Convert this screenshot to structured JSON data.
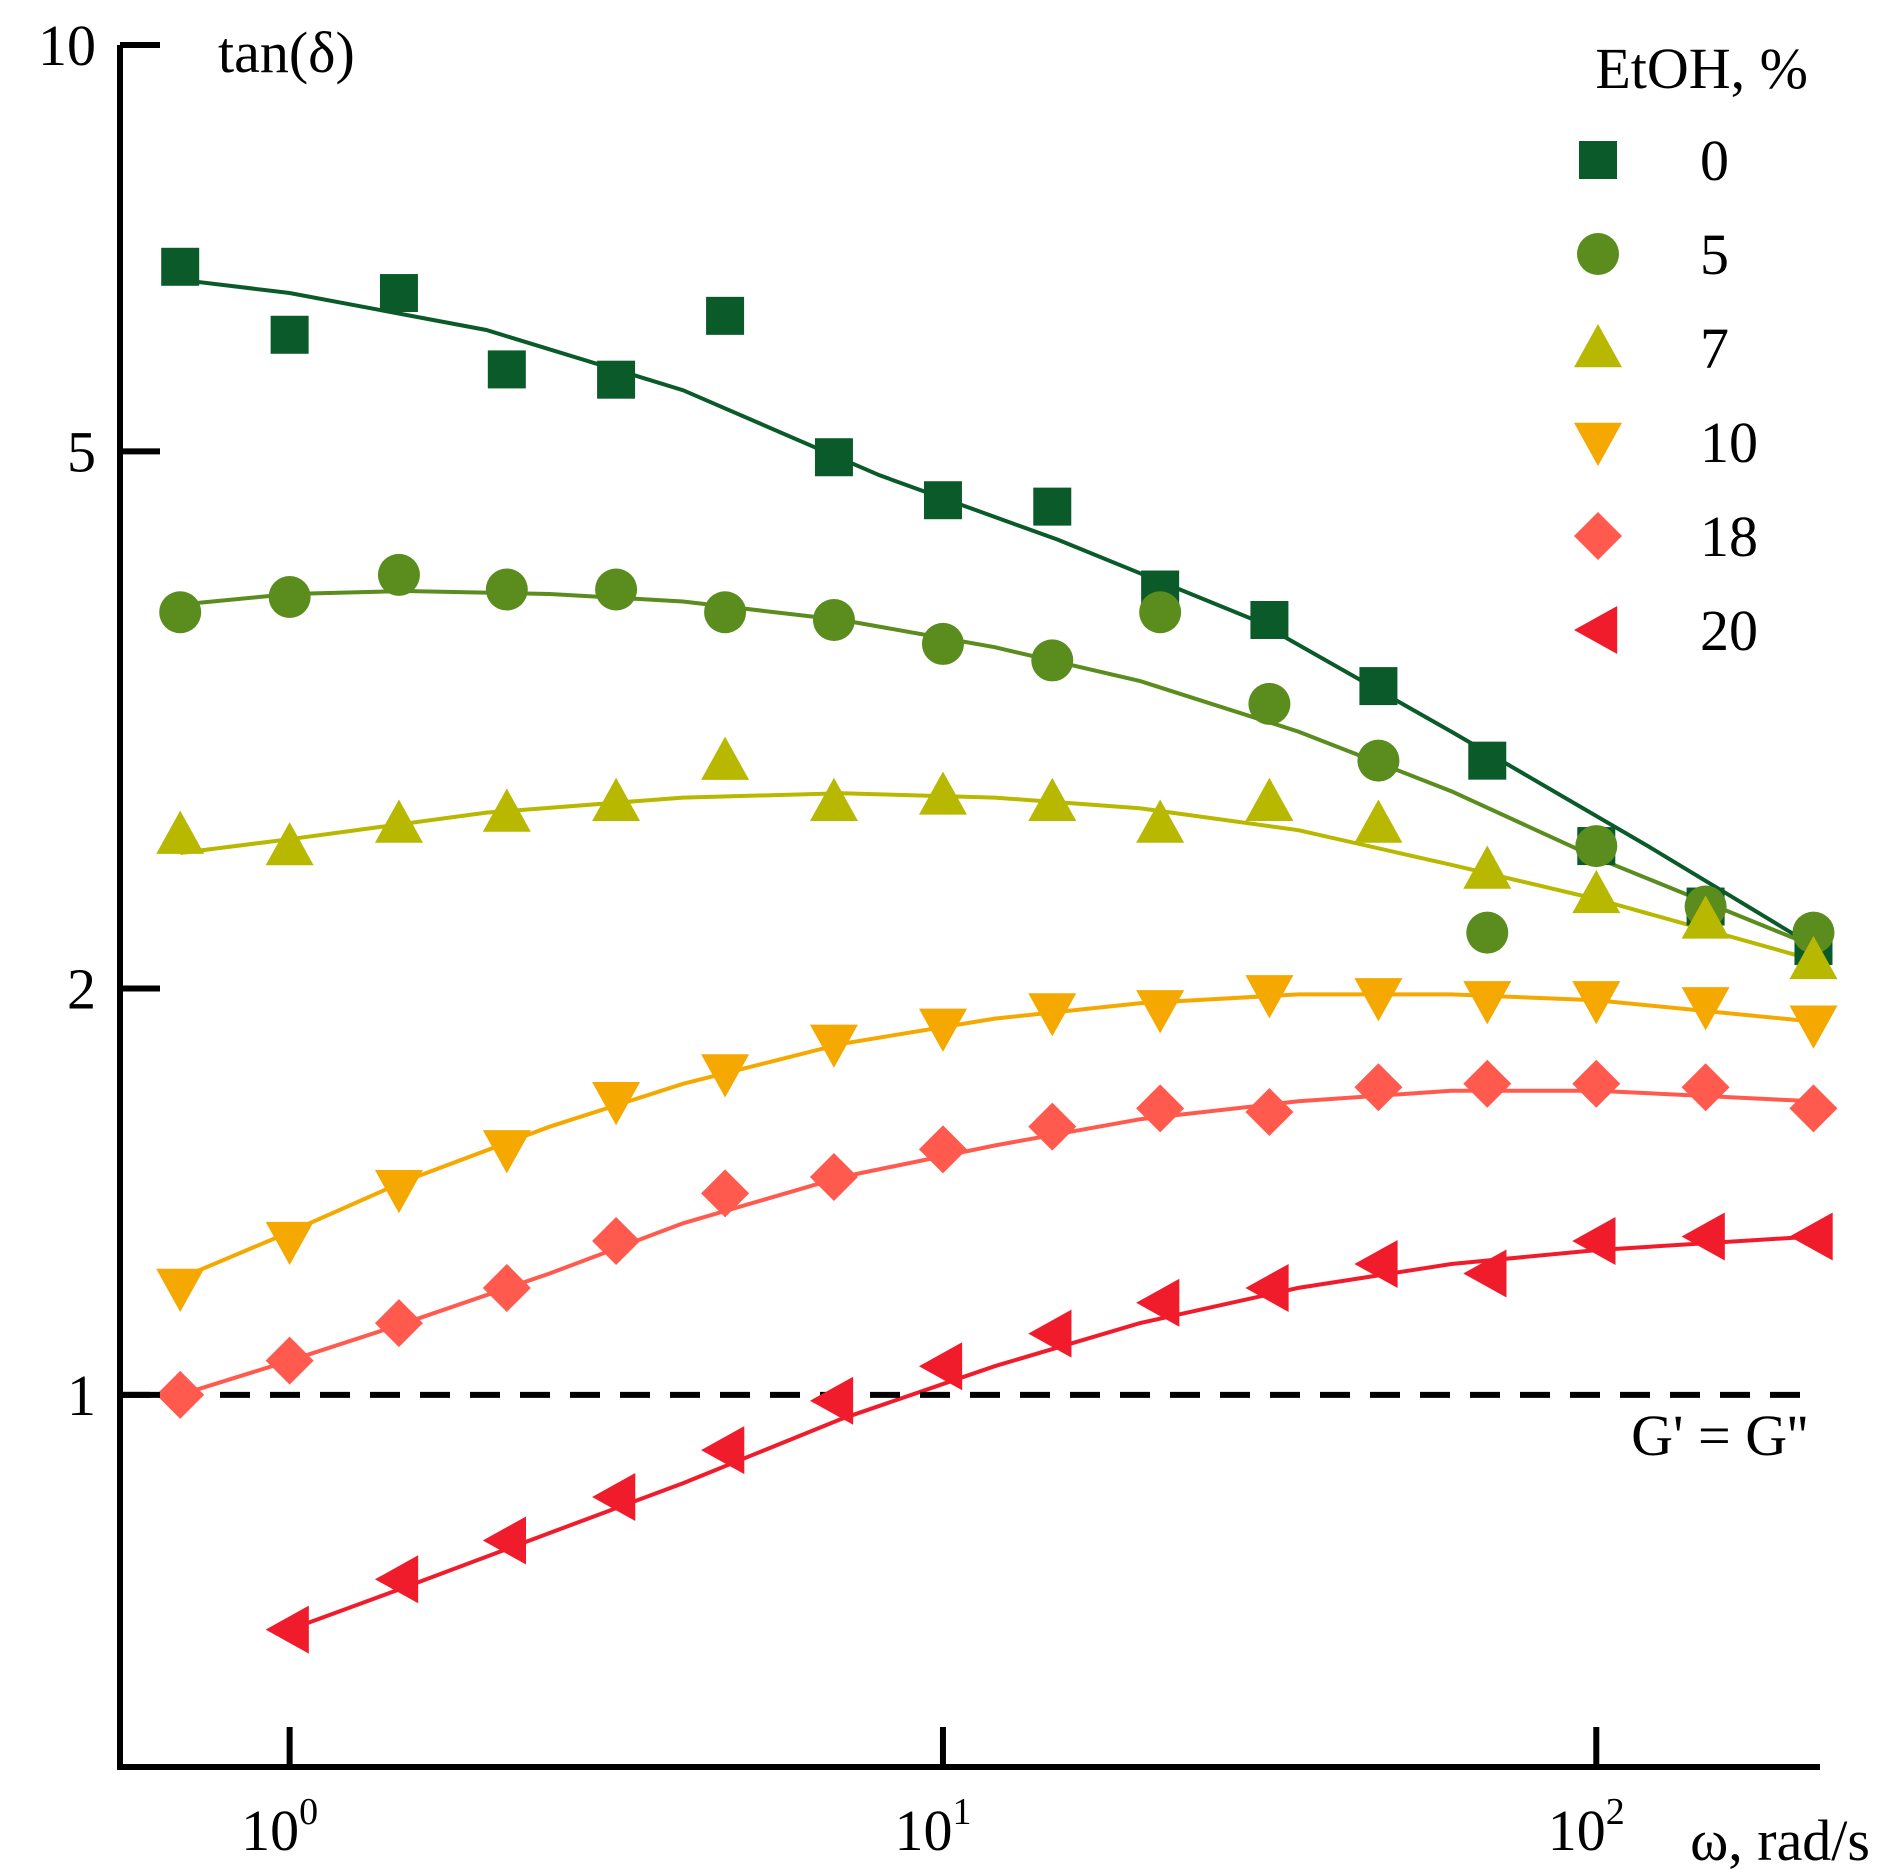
{
  "chart_data": {
    "type": "scatter",
    "x_scale": "log",
    "y_scale": "log",
    "xlim": [
      0.55,
      220
    ],
    "ylim": [
      0.53,
      10
    ],
    "xlabel": "ω, rad/s",
    "ylabel": "tan(δ)",
    "x_ticks": [
      {
        "value": 1,
        "base": "10",
        "exp": "0"
      },
      {
        "value": 10,
        "base": "10",
        "exp": "1"
      },
      {
        "value": 100,
        "base": "10",
        "exp": "2"
      }
    ],
    "y_ticks": [
      {
        "value": 1,
        "label": "1"
      },
      {
        "value": 2,
        "label": "2"
      },
      {
        "value": 5,
        "label": "5"
      },
      {
        "value": 10,
        "label": "10"
      }
    ],
    "legend_title": "EtOH, %",
    "legend_position": "top-right",
    "reference_line": {
      "y": 1,
      "label": "G' = G''"
    },
    "series": [
      {
        "name": "0",
        "marker": "square",
        "color": "#0b5a2a",
        "x": [
          0.68,
          1.0,
          1.47,
          2.15,
          3.16,
          4.64,
          6.81,
          10.0,
          14.7,
          21.5,
          31.6,
          46.4,
          68.1,
          100,
          147,
          215
        ],
        "y": [
          6.85,
          6.1,
          6.55,
          5.75,
          5.65,
          6.3,
          4.95,
          4.6,
          4.55,
          3.95,
          3.75,
          3.35,
          2.95,
          2.55,
          2.3,
          2.15
        ],
        "fit_x": [
          0.68,
          1.0,
          2.0,
          4.0,
          8.0,
          15.0,
          30.0,
          60.0,
          120.0,
          215.0
        ],
        "fit_y": [
          6.7,
          6.55,
          6.15,
          5.55,
          4.8,
          4.3,
          3.75,
          3.1,
          2.55,
          2.15
        ]
      },
      {
        "name": "5",
        "marker": "circle",
        "color": "#5a8c1e",
        "x": [
          0.68,
          1.0,
          1.47,
          2.15,
          3.16,
          4.64,
          6.81,
          10.0,
          14.7,
          21.5,
          31.6,
          46.4,
          68.1,
          100,
          147,
          215
        ],
        "y": [
          3.8,
          3.9,
          4.05,
          3.95,
          3.95,
          3.8,
          3.75,
          3.6,
          3.5,
          3.8,
          3.25,
          2.95,
          2.2,
          2.55,
          2.3,
          2.2
        ],
        "fit_x": [
          0.68,
          1.0,
          1.5,
          2.5,
          4.0,
          7.0,
          12.0,
          20.0,
          35.0,
          60.0,
          100.0,
          215.0
        ],
        "fit_y": [
          3.85,
          3.92,
          3.94,
          3.92,
          3.87,
          3.75,
          3.58,
          3.38,
          3.1,
          2.8,
          2.5,
          2.15
        ]
      },
      {
        "name": "7",
        "marker": "triangle-up",
        "color": "#b8b800",
        "x": [
          0.68,
          1.0,
          1.47,
          2.15,
          3.16,
          4.64,
          6.81,
          10.0,
          14.7,
          21.5,
          31.6,
          46.4,
          68.1,
          100,
          147,
          215
        ],
        "y": [
          2.6,
          2.55,
          2.65,
          2.7,
          2.75,
          2.95,
          2.75,
          2.78,
          2.75,
          2.65,
          2.75,
          2.65,
          2.45,
          2.35,
          2.25,
          2.1
        ],
        "fit_x": [
          0.68,
          1.0,
          2.0,
          4.0,
          7.0,
          12.0,
          20.0,
          35.0,
          60.0,
          100.0,
          215.0
        ],
        "fit_y": [
          2.52,
          2.58,
          2.7,
          2.77,
          2.79,
          2.77,
          2.72,
          2.62,
          2.47,
          2.33,
          2.1
        ]
      },
      {
        "name": "10",
        "marker": "triangle-down",
        "color": "#f5a800",
        "x": [
          0.68,
          1.0,
          1.47,
          2.15,
          3.16,
          4.64,
          6.81,
          10.0,
          14.7,
          21.5,
          31.6,
          46.4,
          68.1,
          100,
          147,
          215
        ],
        "y": [
          1.2,
          1.3,
          1.42,
          1.52,
          1.65,
          1.73,
          1.82,
          1.87,
          1.92,
          1.93,
          1.98,
          1.97,
          1.96,
          1.96,
          1.94,
          1.88
        ],
        "fit_x": [
          0.68,
          1.0,
          1.5,
          2.5,
          4.0,
          7.0,
          12.0,
          20.0,
          35.0,
          60.0,
          100.0,
          215.0
        ],
        "fit_y": [
          1.22,
          1.32,
          1.44,
          1.58,
          1.7,
          1.82,
          1.9,
          1.95,
          1.98,
          1.98,
          1.96,
          1.89
        ]
      },
      {
        "name": "18",
        "marker": "diamond",
        "color": "#ff5a4d",
        "x": [
          0.68,
          1.0,
          1.47,
          2.15,
          3.16,
          4.64,
          6.81,
          10.0,
          14.7,
          21.5,
          31.6,
          46.4,
          68.1,
          100,
          147,
          215
        ],
        "y": [
          1.0,
          1.06,
          1.13,
          1.2,
          1.3,
          1.41,
          1.45,
          1.52,
          1.58,
          1.63,
          1.62,
          1.69,
          1.7,
          1.7,
          1.69,
          1.63
        ],
        "fit_x": [
          0.68,
          1.0,
          1.5,
          2.5,
          4.0,
          7.0,
          12.0,
          20.0,
          35.0,
          60.0,
          100.0,
          215.0
        ],
        "fit_y": [
          1.0,
          1.06,
          1.13,
          1.23,
          1.34,
          1.45,
          1.53,
          1.6,
          1.65,
          1.68,
          1.68,
          1.65
        ]
      },
      {
        "name": "20",
        "marker": "triangle-left",
        "color": "#f01c2c",
        "x": [
          1.0,
          1.47,
          2.15,
          3.16,
          4.64,
          6.81,
          10.0,
          14.7,
          21.5,
          31.6,
          46.4,
          68.1,
          100,
          147,
          215
        ],
        "y": [
          0.67,
          0.73,
          0.78,
          0.84,
          0.91,
          0.99,
          1.05,
          1.11,
          1.17,
          1.2,
          1.25,
          1.23,
          1.3,
          1.31,
          1.31
        ],
        "fit_x": [
          1.0,
          1.5,
          2.5,
          4.0,
          7.0,
          12.0,
          20.0,
          35.0,
          60.0,
          100.0,
          215.0
        ],
        "fit_y": [
          0.67,
          0.72,
          0.79,
          0.86,
          0.96,
          1.05,
          1.13,
          1.2,
          1.25,
          1.28,
          1.31
        ]
      }
    ]
  }
}
